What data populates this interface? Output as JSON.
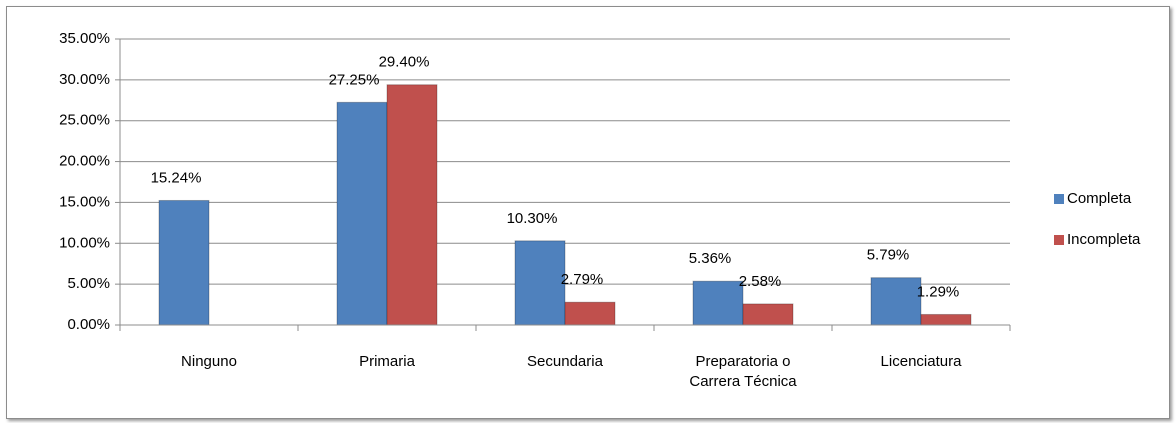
{
  "chart_data": {
    "type": "bar",
    "categories": [
      "Ninguno",
      "Primaria",
      "Secundaria",
      "Preparatoria o Carrera Técnica",
      "Licenciatura"
    ],
    "series": [
      {
        "name": "Completa",
        "color": "#4f81bd",
        "values": [
          15.24,
          27.25,
          10.3,
          5.36,
          5.79
        ],
        "value_labels": [
          "15.24%",
          "27.25%",
          "10.30%",
          "5.36%",
          "5.79%"
        ]
      },
      {
        "name": "Incompleta",
        "color": "#c0504d",
        "values": [
          null,
          29.4,
          2.79,
          2.58,
          1.29
        ],
        "value_labels": [
          null,
          "29.40%",
          "2.79%",
          "2.58%",
          "1.29%"
        ]
      }
    ],
    "ylim": [
      0,
      35
    ],
    "yticks": [
      {
        "value": 0,
        "label": "0.00%"
      },
      {
        "value": 5,
        "label": "5.00%"
      },
      {
        "value": 10,
        "label": "10.00%"
      },
      {
        "value": 15,
        "label": "15.00%"
      },
      {
        "value": 20,
        "label": "20.00%"
      },
      {
        "value": 25,
        "label": "25.00%"
      },
      {
        "value": 30,
        "label": "30.00%"
      },
      {
        "value": 35,
        "label": "35.00%"
      }
    ],
    "grid": true,
    "legend": "right"
  }
}
